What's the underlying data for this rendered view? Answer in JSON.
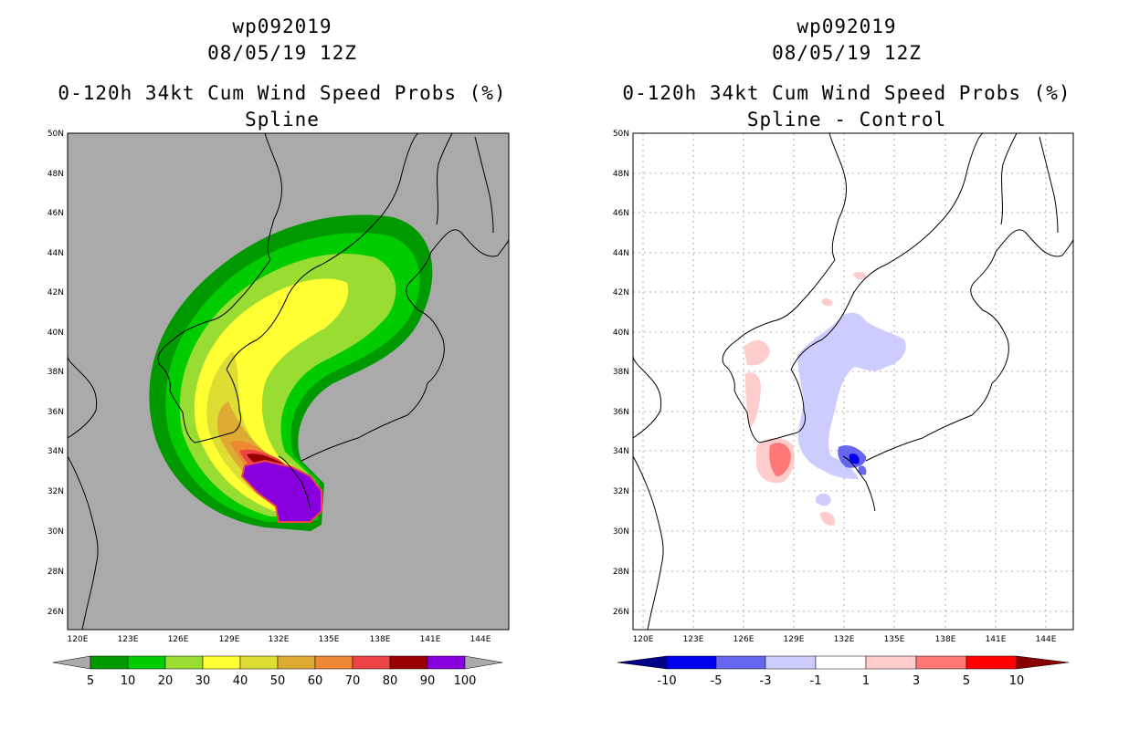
{
  "panels": [
    {
      "id": "prob",
      "title_lines": [
        "wp092019",
        "08/05/19 12Z",
        "0-120h 34kt Cum Wind Speed Probs (%)",
        "Spline"
      ],
      "background": "#aaaaaa",
      "colorbar": {
        "labels": [
          "5",
          "10",
          "20",
          "30",
          "40",
          "50",
          "60",
          "70",
          "80",
          "90",
          "100"
        ],
        "colors": [
          "#009900",
          "#00cc00",
          "#99dd33",
          "#ffff33",
          "#dddd33",
          "#ddaa33",
          "#ee8833",
          "#ee4444",
          "#990000",
          "#8800dd"
        ]
      }
    },
    {
      "id": "diff",
      "title_lines": [
        "wp092019",
        "08/05/19 12Z",
        "0-120h 34kt Cum Wind Speed Probs (%)",
        "Spline - Control"
      ],
      "background": "#ffffff",
      "colorbar": {
        "labels": [
          "-10",
          "-5",
          "-3",
          "-1",
          "1",
          "3",
          "5",
          "10"
        ],
        "colors": [
          "#0000aa",
          "#0000ee",
          "#6666ee",
          "#ccccff",
          "#ffffff",
          "#ffcccc",
          "#ff7777",
          "#ff0000"
        ],
        "end_low": "#000088",
        "end_high": "#880000"
      }
    }
  ],
  "axes": {
    "lon_labels": [
      "120E",
      "123E",
      "126E",
      "129E",
      "132E",
      "135E",
      "138E",
      "141E",
      "144E"
    ],
    "lat_labels": [
      "26N",
      "28N",
      "30N",
      "32N",
      "34N",
      "36N",
      "38N",
      "40N",
      "42N",
      "44N",
      "46N",
      "48N",
      "50N"
    ],
    "lon_range": [
      119.8,
      145.7
    ],
    "lat_range": [
      25.0,
      50.0
    ]
  }
}
